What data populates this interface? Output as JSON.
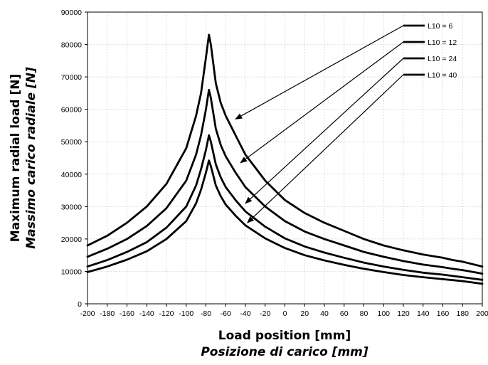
{
  "chart_data": {
    "type": "line",
    "xlabel": "Load position [mm]",
    "xlabel_it": "Posizione di carico [mm]",
    "ylabel": "Maximum radial load [N]",
    "ylabel_it": "Massimo carico radiale [N]",
    "xlim": [
      -200,
      200
    ],
    "ylim": [
      0,
      90000
    ],
    "xticks": [
      -200,
      -180,
      -160,
      -140,
      -120,
      -100,
      -80,
      -60,
      -40,
      -20,
      0,
      20,
      40,
      60,
      80,
      100,
      120,
      140,
      160,
      180,
      200
    ],
    "yticks": [
      0,
      10000,
      20000,
      30000,
      40000,
      50000,
      60000,
      70000,
      80000,
      90000
    ],
    "grid": true,
    "legend_position": "top-right",
    "series": [
      {
        "name": "L10 = 6",
        "x": [
          -200,
          -180,
          -160,
          -140,
          -120,
          -100,
          -90,
          -85,
          -80,
          -77,
          -75,
          -70,
          -65,
          -60,
          -50,
          -40,
          -20,
          0,
          20,
          40,
          60,
          80,
          100,
          120,
          140,
          160,
          170,
          180,
          200
        ],
        "y": [
          18000,
          21000,
          25000,
          30000,
          37000,
          48000,
          58000,
          65000,
          76000,
          83000,
          80000,
          68000,
          62000,
          58000,
          52000,
          46000,
          38000,
          32000,
          28000,
          25000,
          22500,
          20000,
          18000,
          16500,
          15200,
          14200,
          13500,
          13000,
          11500
        ]
      },
      {
        "name": "L10 = 12",
        "x": [
          -200,
          -180,
          -160,
          -140,
          -120,
          -100,
          -90,
          -85,
          -80,
          -77,
          -75,
          -70,
          -65,
          -60,
          -50,
          -40,
          -20,
          0,
          20,
          40,
          60,
          80,
          100,
          120,
          140,
          160,
          170,
          180,
          200
        ],
        "y": [
          14500,
          17000,
          20000,
          24000,
          29500,
          38000,
          46000,
          52000,
          60000,
          66000,
          63500,
          54000,
          49000,
          45500,
          40500,
          36000,
          30000,
          25500,
          22300,
          20000,
          18000,
          16000,
          14500,
          13200,
          12100,
          11300,
          10800,
          10400,
          9300
        ]
      },
      {
        "name": "L10 = 24",
        "x": [
          -200,
          -180,
          -160,
          -140,
          -120,
          -100,
          -90,
          -85,
          -80,
          -77,
          -75,
          -70,
          -65,
          -60,
          -50,
          -40,
          -20,
          0,
          20,
          40,
          60,
          80,
          100,
          120,
          140,
          160,
          170,
          180,
          200
        ],
        "y": [
          11500,
          13500,
          16000,
          19000,
          23500,
          30000,
          36500,
          41500,
          47500,
          52000,
          50000,
          43000,
          39000,
          36000,
          32000,
          28500,
          23800,
          20200,
          17700,
          15800,
          14200,
          12700,
          11500,
          10500,
          9600,
          9000,
          8600,
          8200,
          7400
        ]
      },
      {
        "name": "L10 = 40",
        "x": [
          -200,
          -180,
          -160,
          -140,
          -120,
          -100,
          -90,
          -85,
          -80,
          -77,
          -75,
          -70,
          -65,
          -60,
          -50,
          -40,
          -20,
          0,
          20,
          40,
          60,
          80,
          100,
          120,
          140,
          160,
          170,
          180,
          200
        ],
        "y": [
          9800,
          11500,
          13600,
          16200,
          20000,
          25500,
          31000,
          35200,
          40500,
          44200,
          42500,
          36500,
          33200,
          30600,
          27200,
          24200,
          20200,
          17200,
          15000,
          13400,
          12000,
          10800,
          9800,
          8900,
          8200,
          7600,
          7300,
          7000,
          6200
        ]
      }
    ],
    "annotations": [
      {
        "target_series": "L10 = 6",
        "tip": [
          -50,
          57000
        ]
      },
      {
        "target_series": "L10 = 12",
        "tip": [
          -45,
          43500
        ]
      },
      {
        "target_series": "L10 = 24",
        "tip": [
          -40,
          31000
        ]
      },
      {
        "target_series": "L10 = 40",
        "tip": [
          -38,
          25000
        ]
      }
    ]
  }
}
